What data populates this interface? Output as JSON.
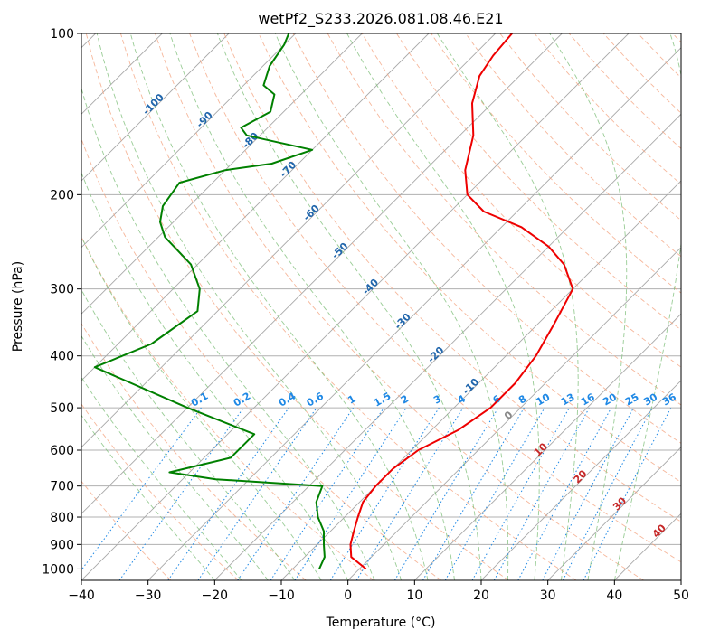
{
  "chart_data": {
    "type": "line",
    "subtype": "skew-t log-p",
    "title": "wetPf2_S233.2026.081.08.46.E21",
    "xlabel": "Temperature (°C)",
    "ylabel": "Pressure (hPa)",
    "xlim": [
      -40,
      50
    ],
    "ylim": [
      1050,
      100
    ],
    "y_scale": "log",
    "x_ticks": [
      -40,
      -30,
      -20,
      -10,
      0,
      10,
      20,
      30,
      40,
      50
    ],
    "y_ticks": [
      100,
      200,
      300,
      400,
      500,
      600,
      700,
      800,
      900,
      1000
    ],
    "grid": true,
    "colors": {
      "temperature": "#ee0000",
      "dewpoint": "#008000",
      "isotherms": "#a8a8a8",
      "dry_adiabats": "#f4a582",
      "moist_adiabats": "#7fbf7b",
      "mixing_ratio": "#1e88e5",
      "isotherm_labels": "#2166ac",
      "positive_labels": "#c62828"
    },
    "series": [
      {
        "name": "Temperature",
        "points": [
          [
            1,
            1000
          ],
          [
            -3,
            950
          ],
          [
            -5,
            900
          ],
          [
            -6.5,
            850
          ],
          [
            -8,
            800
          ],
          [
            -9.5,
            750
          ],
          [
            -10,
            700
          ],
          [
            -10,
            650
          ],
          [
            -9,
            600
          ],
          [
            -6,
            550
          ],
          [
            -4.5,
            500
          ],
          [
            -4.5,
            450
          ],
          [
            -5.5,
            400
          ],
          [
            -7.5,
            350
          ],
          [
            -10,
            300
          ],
          [
            -15,
            270
          ],
          [
            -20,
            250
          ],
          [
            -27,
            230
          ],
          [
            -35,
            215
          ],
          [
            -40,
            200
          ],
          [
            -44,
            180
          ],
          [
            -48,
            155
          ],
          [
            -53,
            135
          ],
          [
            -56,
            120
          ],
          [
            -57,
            110
          ],
          [
            -57.5,
            100
          ]
        ]
      },
      {
        "name": "Dewpoint",
        "points": [
          [
            -6,
            1000
          ],
          [
            -7,
            950
          ],
          [
            -9,
            900
          ],
          [
            -11,
            850
          ],
          [
            -14,
            800
          ],
          [
            -16.5,
            750
          ],
          [
            -18,
            700
          ],
          [
            -35,
            680
          ],
          [
            -43,
            660
          ],
          [
            -36,
            620
          ],
          [
            -36,
            560
          ],
          [
            -50,
            500
          ],
          [
            -70,
            420
          ],
          [
            -65,
            380
          ],
          [
            -63,
            330
          ],
          [
            -66,
            300
          ],
          [
            -71,
            270
          ],
          [
            -79,
            240
          ],
          [
            -82,
            225
          ],
          [
            -84,
            210
          ],
          [
            -85,
            190
          ],
          [
            -80,
            180
          ],
          [
            -74,
            175
          ],
          [
            -70,
            165
          ],
          [
            -82,
            155
          ],
          [
            -84,
            150
          ],
          [
            -82,
            140
          ],
          [
            -84,
            130
          ],
          [
            -87,
            125
          ],
          [
            -89,
            115
          ],
          [
            -90,
            105
          ],
          [
            -91,
            100
          ]
        ]
      }
    ],
    "isotherm_labels": [
      "-100",
      "-90",
      "-80",
      "-70",
      "-60",
      "-50",
      "-40",
      "-30",
      "-20",
      "-10",
      "0",
      "10",
      "20",
      "30",
      "40"
    ],
    "mixing_ratio_labels": [
      "0.1",
      "0.2",
      "0.4",
      "0.6",
      "1",
      "1.5",
      "2",
      "3",
      "4",
      "6",
      "8",
      "10",
      "13",
      "16",
      "20",
      "25",
      "30",
      "36"
    ],
    "mixing_ratio_values": [
      0.1,
      0.2,
      0.4,
      0.6,
      1,
      1.5,
      2,
      3,
      4,
      6,
      8,
      10,
      13,
      16,
      20,
      25,
      30,
      36
    ]
  }
}
